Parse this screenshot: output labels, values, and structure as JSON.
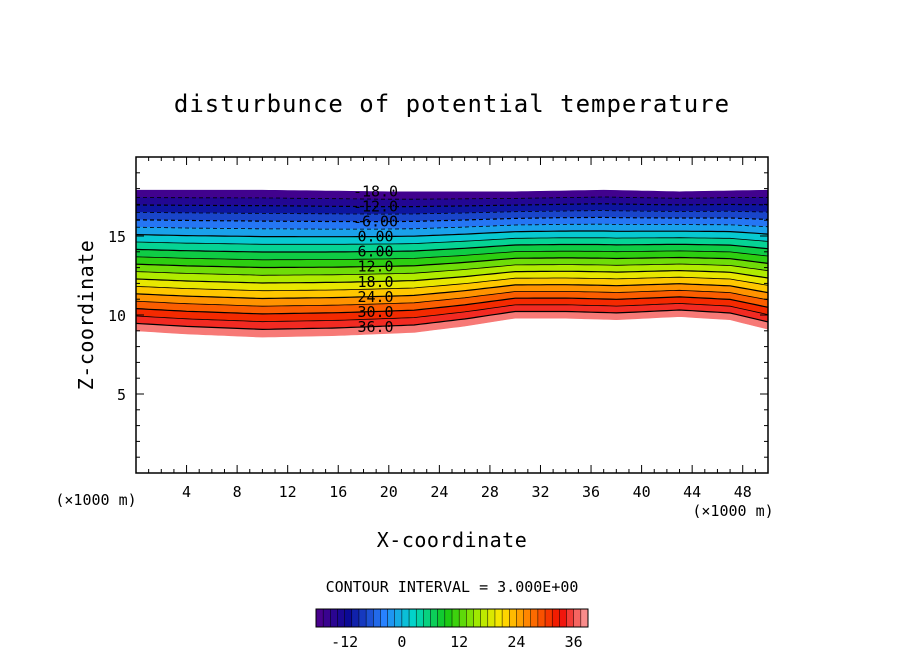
{
  "chart_data": {
    "type": "contour",
    "title": "disturbunce of potential temperature",
    "xlabel": "X-coordinate",
    "ylabel": "Z-coordinate",
    "x_unit": "(×1000 m)",
    "y_unit": "(×1000 m)",
    "xlim": [
      0,
      50
    ],
    "ylim": [
      0,
      20
    ],
    "x_ticks": [
      4,
      8,
      12,
      16,
      20,
      24,
      28,
      32,
      36,
      40,
      44,
      48
    ],
    "y_ticks": [
      5,
      10,
      15
    ],
    "contour_interval_label": "CONTOUR INTERVAL = 3.000E+00",
    "contour_interval": 3.0,
    "level_range": [
      -18,
      39
    ],
    "contour_labels": [
      {
        "text": "-18.0",
        "value": -18
      },
      {
        "text": "-12.0",
        "value": -12
      },
      {
        "text": "-6.00",
        "value": -6
      },
      {
        "text": "0.00",
        "value": 0
      },
      {
        "text": "6.00",
        "value": 6
      },
      {
        "text": "12.0",
        "value": 12
      },
      {
        "text": "18.0",
        "value": 18
      },
      {
        "text": "24.0",
        "value": 24
      },
      {
        "text": "30.0",
        "value": 30
      },
      {
        "text": "36.0",
        "value": 36
      }
    ],
    "label_x": 18,
    "field_top_z": [
      [
        0,
        17.9
      ],
      [
        10,
        17.9
      ],
      [
        20,
        17.8
      ],
      [
        30,
        17.8
      ],
      [
        37,
        17.9
      ],
      [
        43,
        17.8
      ],
      [
        50,
        17.9
      ]
    ],
    "field_bottom_z": [
      [
        0,
        9.0
      ],
      [
        4,
        8.8
      ],
      [
        10,
        8.6
      ],
      [
        16,
        8.7
      ],
      [
        22,
        8.9
      ],
      [
        26,
        9.3
      ],
      [
        30,
        9.8
      ],
      [
        34,
        9.8
      ],
      [
        38,
        9.7
      ],
      [
        43,
        9.9
      ],
      [
        47,
        9.7
      ],
      [
        50,
        9.1
      ]
    ],
    "colorbar": {
      "min": -18,
      "max": 39,
      "tick_labels": [
        "-12",
        "0",
        "12",
        "24",
        "36"
      ],
      "tick_values": [
        -12,
        0,
        12,
        24,
        36
      ]
    }
  }
}
